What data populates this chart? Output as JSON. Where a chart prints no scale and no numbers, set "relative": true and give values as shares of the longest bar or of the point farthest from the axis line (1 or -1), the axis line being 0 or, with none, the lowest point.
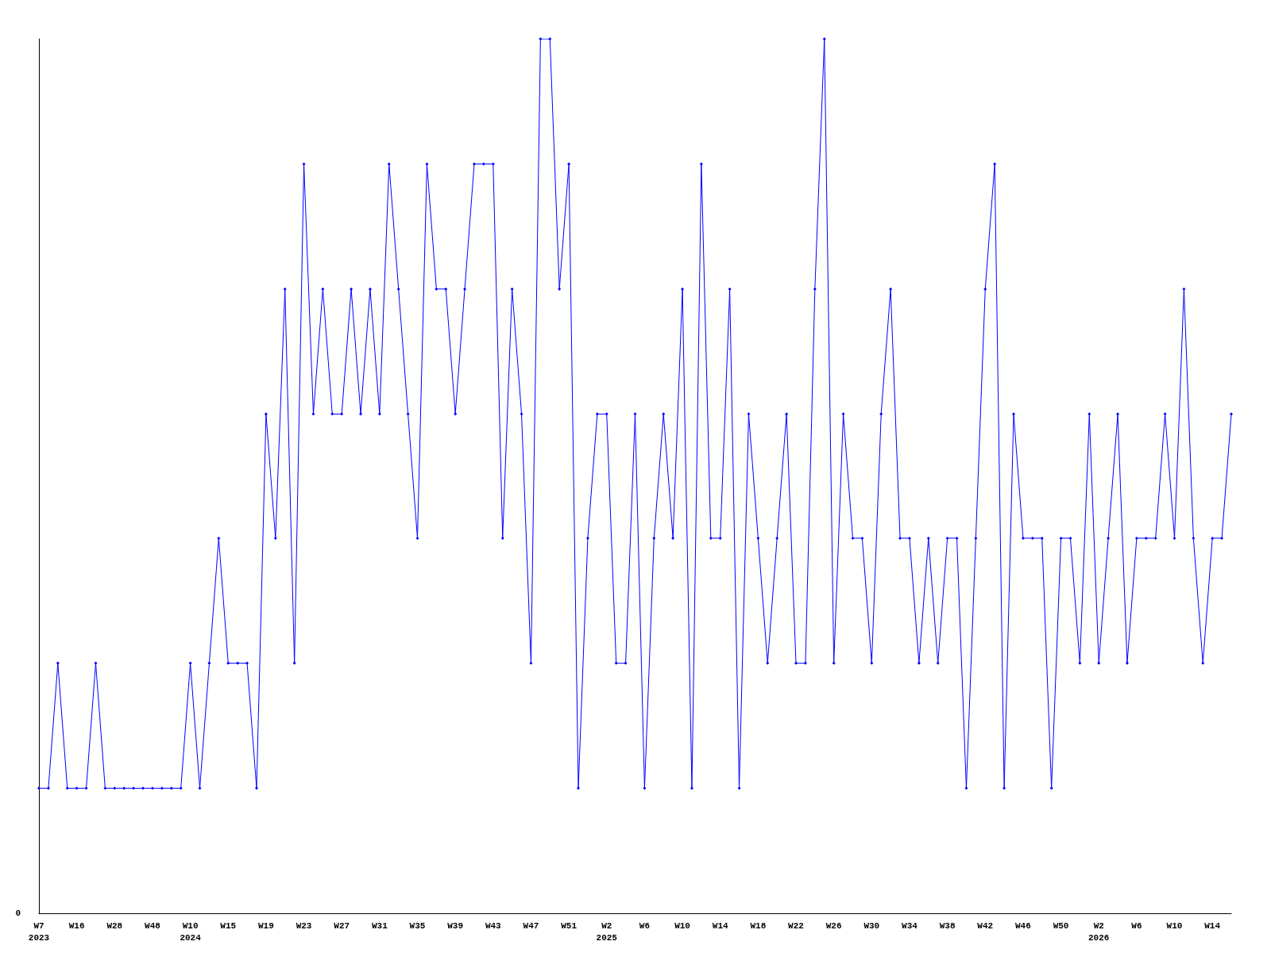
{
  "chart_data": {
    "type": "line",
    "relative": true,
    "color": "#0000ff",
    "marker": "diamond",
    "grid": false,
    "annotations": [
      "0"
    ],
    "categories": [
      "W7\n2023",
      null,
      null,
      null,
      "W16",
      null,
      null,
      null,
      "W28",
      null,
      null,
      null,
      "W48",
      null,
      null,
      null,
      "W10\n2024",
      null,
      null,
      null,
      "W15",
      null,
      null,
      null,
      "W19",
      null,
      null,
      null,
      "W23",
      null,
      null,
      null,
      "W27",
      null,
      null,
      null,
      "W31",
      null,
      null,
      null,
      "W35",
      null,
      null,
      null,
      "W39",
      null,
      null,
      null,
      "W43",
      null,
      null,
      null,
      "W47",
      null,
      null,
      null,
      "W51",
      null,
      null,
      null,
      "W2\n2025",
      null,
      null,
      null,
      "W6",
      null,
      null,
      null,
      "W10",
      null,
      null,
      null,
      "W14",
      null,
      null,
      null,
      "W18",
      null,
      null,
      null,
      "W22",
      null,
      null,
      null,
      "W26",
      null,
      null,
      null,
      "W30",
      null,
      null,
      null,
      "W34",
      null,
      null,
      null,
      "W38",
      null,
      null,
      null,
      "W42",
      null,
      null,
      null,
      "W46",
      null,
      null,
      null,
      "W50",
      null,
      null,
      null,
      "W2\n2026",
      null,
      null,
      null,
      "W6",
      null,
      null,
      null,
      "W10",
      null,
      null,
      null,
      "W14",
      null,
      null
    ],
    "values": [
      0.143,
      0.143,
      0.286,
      0.143,
      0.143,
      0.143,
      0.286,
      0.143,
      0.143,
      0.143,
      0.143,
      0.143,
      0.143,
      0.143,
      0.143,
      0.143,
      0.286,
      0.143,
      0.286,
      0.429,
      0.286,
      0.286,
      0.286,
      0.143,
      0.571,
      0.429,
      0.714,
      0.286,
      0.857,
      0.571,
      0.714,
      0.571,
      0.571,
      0.714,
      0.571,
      0.714,
      0.571,
      0.857,
      0.714,
      0.571,
      0.429,
      0.857,
      0.714,
      0.714,
      0.571,
      0.714,
      0.857,
      0.857,
      0.857,
      0.429,
      0.714,
      0.571,
      0.286,
      1,
      1,
      0.714,
      0.857,
      0.143,
      0.429,
      0.571,
      0.571,
      0.286,
      0.286,
      0.571,
      0.143,
      0.429,
      0.571,
      0.429,
      0.714,
      0.143,
      0.857,
      0.429,
      0.429,
      0.714,
      0.143,
      0.571,
      0.429,
      0.286,
      0.429,
      0.571,
      0.286,
      0.286,
      0.714,
      1,
      0.286,
      0.571,
      0.429,
      0.429,
      0.286,
      0.571,
      0.714,
      0.429,
      0.429,
      0.286,
      0.429,
      0.286,
      0.429,
      0.429,
      0.143,
      0.429,
      0.714,
      0.857,
      0.143,
      0.571,
      0.429,
      0.429,
      0.429,
      0.143,
      0.429,
      0.429,
      0.286,
      0.571,
      0.286,
      0.429,
      0.571,
      0.286,
      0.429,
      0.429,
      0.429,
      0.571,
      0.429,
      0.714,
      0.429,
      0.286,
      0.429,
      0.429,
      0.571
    ]
  }
}
